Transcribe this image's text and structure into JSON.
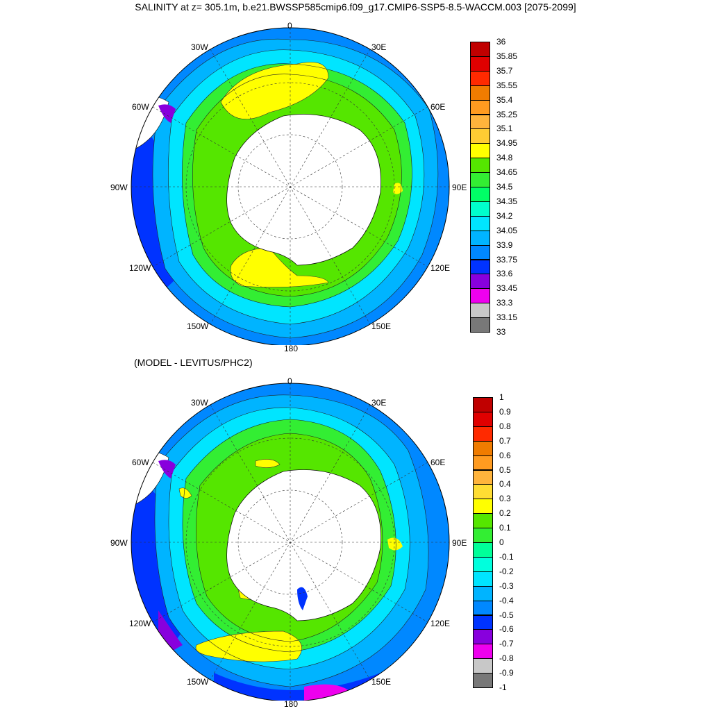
{
  "title": "SALINITY at z= 305.1m, b.e21.BWSSP585cmip6.f09_g17.CMIP6-SSP5-8.5-WACCM.003 [2075-2099]",
  "subtitle": "(MODEL - LEVITUS/PHC2)",
  "map_labels": {
    "lon_0": "0",
    "lon_30e": "30E",
    "lon_60e": "60E",
    "lon_90e": "90E",
    "lon_120e": "120E",
    "lon_150e": "150E",
    "lon_180": "180",
    "lon_150w": "150W",
    "lon_120w": "120W",
    "lon_90w": "90W",
    "lon_60w": "60W",
    "lon_30w": "30W"
  },
  "top_colorbar": {
    "ticks": [
      "36",
      "35.85",
      "35.7",
      "35.55",
      "35.4",
      "35.25",
      "35.1",
      "34.95",
      "34.8",
      "34.65",
      "34.5",
      "34.35",
      "34.2",
      "34.05",
      "33.9",
      "33.75",
      "33.6",
      "33.45",
      "33.3",
      "33.15",
      "33"
    ],
    "colors": [
      "#c00000",
      "#e00000",
      "#ff2a00",
      "#f07c00",
      "#ff9b20",
      "#ffb43c",
      "#ffcc33",
      "#ffff00",
      "#55e600",
      "#33ee33",
      "#00ff66",
      "#00ffcc",
      "#00e5ff",
      "#00b4ff",
      "#0088ff",
      "#0033ff",
      "#8800dd",
      "#ee00ee",
      "#c8c8c8",
      "#787878"
    ]
  },
  "bottom_colorbar": {
    "ticks": [
      "1",
      "0.9",
      "0.8",
      "0.7",
      "0.6",
      "0.5",
      "0.4",
      "0.3",
      "0.2",
      "0.1",
      "0",
      "-0.1",
      "-0.2",
      "-0.3",
      "-0.4",
      "-0.5",
      "-0.6",
      "-0.7",
      "-0.8",
      "-0.9",
      "-1"
    ],
    "colors": [
      "#c00000",
      "#e00000",
      "#ff2a00",
      "#f07c00",
      "#ff9b20",
      "#ffb43c",
      "#ffdd33",
      "#ffff00",
      "#55e600",
      "#33ee33",
      "#00ff99",
      "#00ffdd",
      "#00e5ff",
      "#00b4ff",
      "#0088ff",
      "#0033ff",
      "#8800dd",
      "#ee00ee",
      "#c8c8c8",
      "#787878"
    ]
  }
}
